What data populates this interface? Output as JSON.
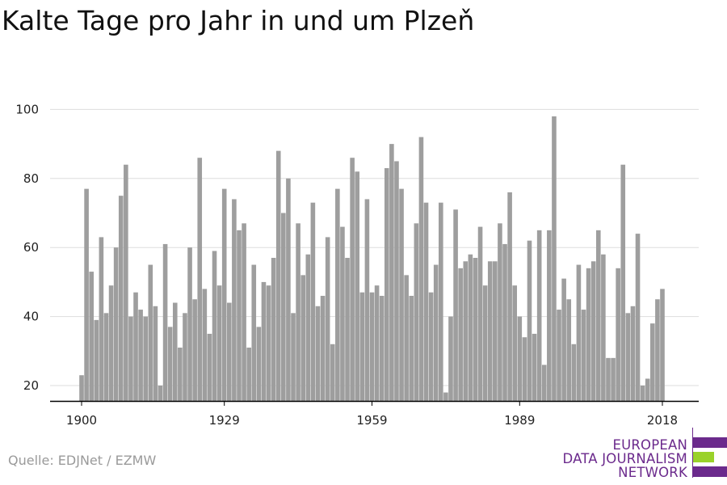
{
  "title": "Kalte Tage pro Jahr in und um Plzeň",
  "source": "Quelle: EDJNet / EZMW",
  "logo": {
    "lines": [
      "EUROPEAN",
      "DATA JOURNALISM",
      "NETWORK"
    ],
    "colors": {
      "purple": "#6b2a8c",
      "green": "#9ad22a"
    }
  },
  "colors": {
    "bar": "#9e9e9e",
    "grid": "#dddddd",
    "axis": "#000000",
    "tick_text": "#222222"
  },
  "chart_data": {
    "type": "bar",
    "x_start": 1900,
    "x_end": 2018,
    "xticks": [
      1900,
      1929,
      1959,
      1989,
      2018
    ],
    "yticks": [
      20,
      40,
      60,
      80,
      100
    ],
    "ylim": [
      15,
      100
    ],
    "grid": true,
    "xlabel": "",
    "ylabel": "",
    "values": [
      23,
      77,
      53,
      39,
      63,
      41,
      49,
      60,
      75,
      84,
      40,
      47,
      42,
      40,
      55,
      43,
      20,
      61,
      37,
      44,
      31,
      41,
      60,
      45,
      86,
      48,
      35,
      59,
      49,
      77,
      44,
      74,
      65,
      67,
      31,
      55,
      37,
      50,
      49,
      57,
      88,
      70,
      80,
      41,
      67,
      52,
      58,
      73,
      43,
      46,
      63,
      32,
      77,
      66,
      57,
      86,
      82,
      47,
      74,
      47,
      49,
      46,
      83,
      90,
      85,
      77,
      52,
      46,
      67,
      92,
      73,
      47,
      55,
      73,
      18,
      40,
      71,
      54,
      56,
      58,
      57,
      66,
      49,
      56,
      56,
      67,
      61,
      76,
      49,
      40,
      34,
      62,
      35,
      65,
      26,
      65,
      98,
      42,
      51,
      45,
      32,
      55,
      42,
      54,
      56,
      65,
      58,
      28,
      28,
      54,
      84,
      41,
      43,
      64,
      20,
      22,
      38,
      45,
      48
    ]
  }
}
